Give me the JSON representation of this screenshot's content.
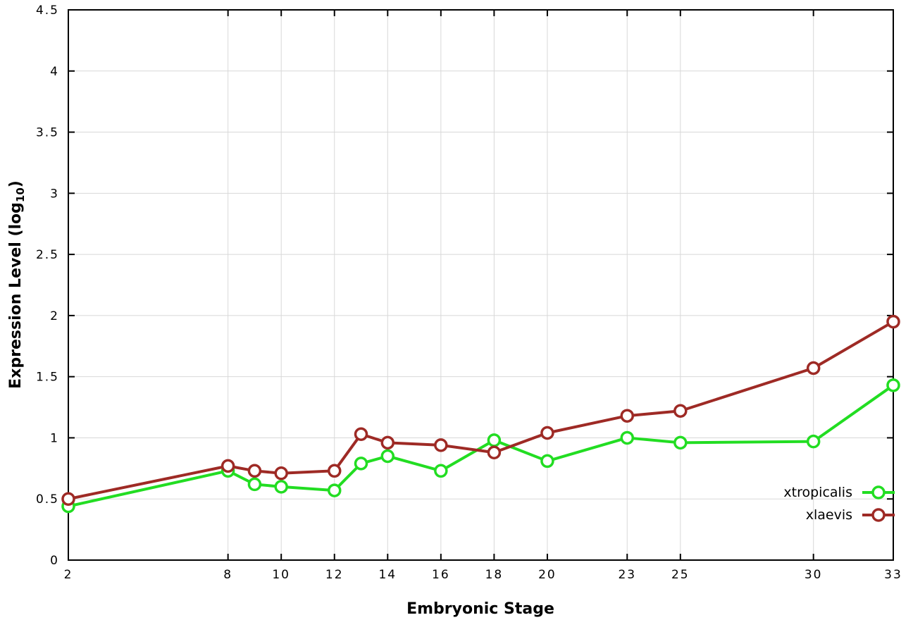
{
  "chart_data": {
    "type": "line",
    "title": "",
    "xlabel": "Embryonic Stage",
    "ylabel": "Expression Level (log10)",
    "ylabel_parts": {
      "prefix": "Expression Level (log",
      "sub": "10",
      "suffix": ")"
    },
    "xlim": [
      2,
      33
    ],
    "ylim": [
      0,
      4.5
    ],
    "xticks": [
      2,
      8,
      10,
      12,
      14,
      16,
      18,
      20,
      23,
      25,
      30,
      33
    ],
    "yticks": [
      0,
      0.5,
      1,
      1.5,
      2,
      2.5,
      3,
      3.5,
      4,
      4.5
    ],
    "grid": true,
    "legend_position": "bottom-right",
    "x": [
      2,
      8,
      9,
      10,
      12,
      13,
      14,
      16,
      18,
      20,
      23,
      25,
      30,
      33
    ],
    "series": [
      {
        "name": "xtropicalis",
        "color": "#22dd22",
        "values": [
          0.44,
          0.73,
          0.62,
          0.6,
          0.57,
          0.79,
          0.85,
          0.73,
          0.98,
          0.81,
          1.0,
          0.96,
          0.97,
          1.43
        ]
      },
      {
        "name": "xlaevis",
        "color": "#9e2a25",
        "values": [
          0.5,
          0.77,
          0.73,
          0.71,
          0.73,
          1.03,
          0.96,
          0.94,
          0.88,
          1.04,
          1.18,
          1.22,
          1.57,
          1.95
        ]
      }
    ],
    "colors": {
      "grid": "#d8d8d8",
      "border": "#000000",
      "background": "#ffffff"
    }
  }
}
